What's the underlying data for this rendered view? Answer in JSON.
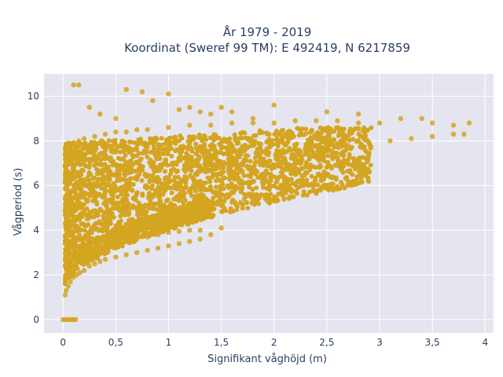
{
  "chart_data": {
    "type": "scatter",
    "title_line1": "År 1979 - 2019",
    "title_line2": "Koordinat (Sweref 99 TM): E 492419, N 6217859",
    "xlabel": "Signifikant våghöjd (m)",
    "ylabel": "Vågperiod (s)",
    "xlim": [
      -0.18,
      4.08
    ],
    "ylim": [
      -0.6,
      11.0
    ],
    "x_ticks": [
      0,
      0.5,
      1,
      1.5,
      2,
      2.5,
      3,
      3.5,
      4
    ],
    "x_tick_labels": [
      "0",
      "0,5",
      "1",
      "1,5",
      "2",
      "2,5",
      "3",
      "3,5",
      "4"
    ],
    "y_ticks": [
      0,
      2,
      4,
      6,
      8,
      10
    ],
    "y_tick_labels": [
      "0",
      "2",
      "4",
      "6",
      "8",
      "10"
    ],
    "grid": true,
    "marker_color": "#D4A520",
    "plot_background": "#E5E5EF",
    "series": [
      {
        "x": [
          0.0,
          0.02,
          0.04,
          0.06,
          0.08,
          0.1,
          0.12,
          0.02,
          0.03,
          0.05,
          0.07,
          0.1,
          0.13,
          0.16,
          0.2,
          0.25,
          0.3,
          0.35,
          0.4,
          0.5,
          0.6,
          0.7,
          0.8,
          0.9,
          1.0,
          1.1,
          1.2,
          1.3,
          1.4,
          0.05,
          0.1,
          0.15,
          0.2,
          0.3,
          0.4,
          0.5,
          0.6,
          0.7,
          0.8,
          1.0,
          1.2,
          1.4,
          1.6,
          1.8,
          2.0,
          2.2,
          2.4,
          2.6,
          2.8,
          3.0,
          0.03,
          0.06,
          0.1,
          0.15,
          0.2,
          0.3,
          0.4,
          0.5,
          0.6,
          0.8,
          1.0,
          1.2,
          0.2,
          0.3,
          0.4,
          0.5,
          0.6,
          0.7,
          0.8,
          0.9,
          1.0,
          1.1,
          1.2,
          1.3,
          1.5,
          0.1,
          0.2,
          0.3,
          0.5,
          0.7,
          0.9,
          1.1,
          1.3,
          1.5,
          1.7,
          1.9,
          2.1,
          2.3,
          2.5,
          2.7,
          2.9,
          3.1,
          3.3,
          3.5,
          3.7,
          3.8,
          0.1,
          0.15,
          0.25,
          0.35,
          0.5,
          0.6,
          0.75,
          0.85,
          1.0,
          1.1,
          1.2,
          1.3,
          1.4,
          1.5,
          1.6,
          1.8,
          2.0,
          2.5,
          2.8,
          3.2,
          3.4,
          3.5,
          3.7,
          3.85
        ],
        "y": [
          0.0,
          0.0,
          0.0,
          0.0,
          0.0,
          0.0,
          0.0,
          1.1,
          1.3,
          1.5,
          1.7,
          1.9,
          2.0,
          2.1,
          2.2,
          2.4,
          2.5,
          2.6,
          2.7,
          2.8,
          2.9,
          3.0,
          3.1,
          3.2,
          3.3,
          3.4,
          3.5,
          3.6,
          3.8,
          7.8,
          7.9,
          8.0,
          8.1,
          8.2,
          8.3,
          8.4,
          8.4,
          8.5,
          8.5,
          8.6,
          8.7,
          8.7,
          8.8,
          8.8,
          8.8,
          8.9,
          8.9,
          8.9,
          8.8,
          8.8,
          4.0,
          5.0,
          6.0,
          6.5,
          7.0,
          7.2,
          7.4,
          7.5,
          7.6,
          7.7,
          7.8,
          7.9,
          3.0,
          3.2,
          3.3,
          3.4,
          3.5,
          3.6,
          3.7,
          3.8,
          3.9,
          3.95,
          4.0,
          4.0,
          4.1,
          6.5,
          6.0,
          5.5,
          5.0,
          5.0,
          5.2,
          5.5,
          5.8,
          6.2,
          6.6,
          6.9,
          7.2,
          7.4,
          7.6,
          7.8,
          7.9,
          8.0,
          8.1,
          8.2,
          8.3,
          8.3,
          10.5,
          10.5,
          9.5,
          9.2,
          9.0,
          10.3,
          10.2,
          9.8,
          10.1,
          9.4,
          9.5,
          9.3,
          9.2,
          9.5,
          9.3,
          9.0,
          9.6,
          9.3,
          9.2,
          9.0,
          9.0,
          8.8,
          8.7,
          8.8
        ]
      }
    ]
  }
}
